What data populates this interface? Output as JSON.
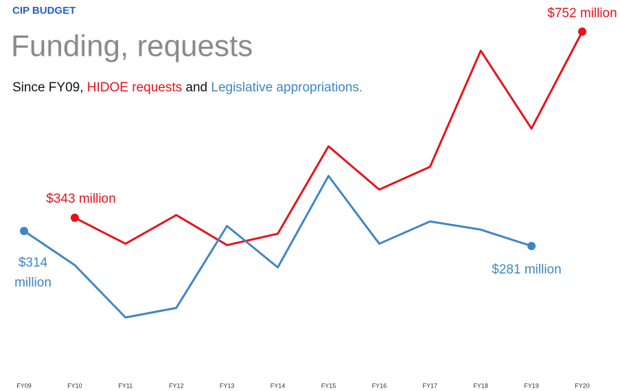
{
  "chart_data": {
    "type": "line",
    "kicker": "CIP BUDGET",
    "title": "Funding, requests",
    "subtitle_parts": [
      "Since FY09,",
      "and",
      "."
    ],
    "categories": [
      "FY09",
      "FY10",
      "FY11",
      "FY12",
      "FY13",
      "FY14",
      "FY15",
      "FY16",
      "FY17",
      "FY18",
      "FY19",
      "FY20"
    ],
    "series": [
      {
        "name": "HIDOE requests",
        "color": "#e8121a",
        "values": [
          null,
          343,
          286,
          349,
          283,
          308,
          500,
          405,
          455,
          710,
          539,
          752
        ],
        "value_labels": [
          null,
          "$343 million",
          null,
          null,
          null,
          null,
          null,
          null,
          null,
          null,
          null,
          "$752 million"
        ]
      },
      {
        "name": "Legislative appropriations",
        "color": "#3f85c8",
        "values": [
          314,
          239,
          124,
          145,
          325,
          234,
          435,
          286,
          335,
          317,
          281,
          null
        ],
        "value_labels": [
          "$314 million",
          null,
          null,
          null,
          null,
          null,
          null,
          null,
          null,
          null,
          "$281 million",
          null
        ]
      }
    ]
  }
}
